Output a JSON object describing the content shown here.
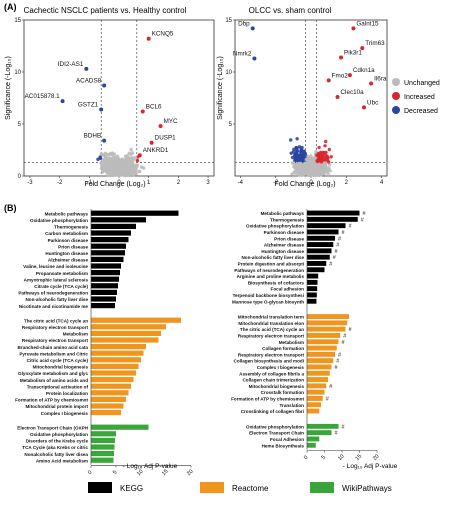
{
  "figure": {
    "panel_a_letter": "(A)",
    "panel_b_letter": "(B)",
    "panel_a_left_title": "Cachectic NSCLC patients vs. Healthy control",
    "panel_a_right_title": "OLCC vs. sham control",
    "legend_a": {
      "items": [
        {
          "label": "Unchanged",
          "color": "#bbbbbb"
        },
        {
          "label": "Increased",
          "color": "#d9262c"
        },
        {
          "label": "Decreased",
          "color": "#2a45a0"
        }
      ]
    },
    "legend_b": {
      "items": [
        {
          "label": "KEGG",
          "color": "#000000"
        },
        {
          "label": "Reactome",
          "color": "#f0961e"
        },
        {
          "label": "WikiPathways",
          "color": "#3aa63a"
        }
      ]
    },
    "colors": {
      "kegg": "#000000",
      "reactome": "#f0961e",
      "wiki": "#3aa63a",
      "increased": "#d9262c",
      "decreased": "#2a45a0",
      "unchanged": "#bbbbbb"
    }
  },
  "chart_data": [
    {
      "type": "scatter",
      "title": "Cachectic NSCLC patients vs. Healthy control",
      "xlabel": "Fold Change (Log₂)",
      "ylabel": "Significance (-Log₁₀)",
      "xlim": [
        -3.2,
        3.2
      ],
      "ylim": [
        0,
        15
      ],
      "xticks": [
        -3,
        -2,
        -1,
        0,
        1,
        2,
        3
      ],
      "yticks": [
        0,
        5,
        10,
        15
      ],
      "thresholds": {
        "fc": [
          -0.6,
          0.6
        ],
        "sig": 1.3
      },
      "labeled_genes": [
        {
          "label": "KCNQ5",
          "x": 1.0,
          "y": 13.2
        },
        {
          "label": "IDI2-AS1",
          "x": -1.1,
          "y": 10.3
        },
        {
          "label": "ACADS8",
          "x": -0.5,
          "y": 8.7
        },
        {
          "label": "AC015878.1",
          "x": -1.9,
          "y": 7.2
        },
        {
          "label": "GSTZ1",
          "x": -0.6,
          "y": 6.4
        },
        {
          "label": "BCL6",
          "x": 0.8,
          "y": 6.2
        },
        {
          "label": "MYC",
          "x": 1.4,
          "y": 4.8
        },
        {
          "label": "BDHB",
          "x": -0.5,
          "y": 3.4
        },
        {
          "label": "DUSP1",
          "x": 1.1,
          "y": 3.2
        },
        {
          "label": "ANKRD1",
          "x": 0.7,
          "y": 2.0
        }
      ]
    },
    {
      "type": "scatter",
      "title": "OLCC vs. sham control",
      "xlabel": "Fold Change (Log₂)",
      "ylabel": "Significance (-Log₁₀)",
      "xlim": [
        -4.3,
        4.3
      ],
      "ylim": [
        0,
        15
      ],
      "xticks": [
        -4,
        -2,
        0,
        2,
        4
      ],
      "yticks": [
        5,
        10,
        15
      ],
      "thresholds": {
        "fc": [
          -0.3,
          0.3
        ],
        "sig": 1.3
      },
      "labeled_genes": [
        {
          "label": "Dbp",
          "x": -3.3,
          "y": 14.2
        },
        {
          "label": "Galnt15",
          "x": 2.4,
          "y": 14.2
        },
        {
          "label": "Nmrk2",
          "x": -3.2,
          "y": 11.3
        },
        {
          "label": "Trim63",
          "x": 2.9,
          "y": 12.3
        },
        {
          "label": "Pik3r1",
          "x": 1.7,
          "y": 11.4
        },
        {
          "label": "Cdkn1a",
          "x": 2.2,
          "y": 9.7
        },
        {
          "label": "Fmo2",
          "x": 1.0,
          "y": 9.2
        },
        {
          "label": "Il6ra",
          "x": 3.4,
          "y": 8.9
        },
        {
          "label": "Clec10a",
          "x": 1.5,
          "y": 7.6
        },
        {
          "label": "Ubc",
          "x": 3.0,
          "y": 6.6
        }
      ]
    },
    {
      "type": "bar",
      "orientation": "horizontal",
      "xlabel": "- Log₁₀ Adj P-value",
      "xlim": [
        0,
        20
      ],
      "xticks": [
        0,
        5,
        10,
        15,
        20
      ],
      "groups": [
        {
          "source": "KEGG",
          "categories": [
            "Metabolic pathways",
            "Oxidative phosphorylation",
            "Thermogenesis",
            "Carbon metabolism",
            "Parkinson disease",
            "Prion disease",
            "Huntington disease",
            "Alzheimer disease",
            "Valine, leucine and isoleucine",
            "Propanoate metabolism",
            "Amyotrophic lateral sclerosis",
            "Citrate cycle (TCA cycle)",
            "Pathways of neurodegeneration",
            "Non-alcoholic fatty liver dise",
            "Nicotinate and nicotinamide me"
          ],
          "values": [
            17.5,
            11.0,
            9.0,
            8.0,
            7.5,
            7.0,
            6.8,
            6.5,
            6.0,
            5.8,
            5.6,
            5.4,
            5.2,
            5.0,
            4.8
          ]
        },
        {
          "source": "Reactome",
          "categories": [
            "The citric acid (TCA) cycle an",
            "Respiratory electron transport",
            "Metabolism",
            "Respiratory electron transport",
            "Branched-chain amino acid cata",
            "Pyruvate metabolism and Citric",
            "Citric acid cycle (TCA cycle)",
            "Mitochondrial biogenesis",
            "Glyoxylate metabolism and glyc",
            "Metabolism of amino acids and",
            "Transcriptional activation of",
            "Protein localization",
            "Formation of ATP by chemiosmot",
            "Mitochondrial protein import",
            "Complex I biogenesis"
          ],
          "values": [
            18.0,
            15.0,
            14.0,
            13.5,
            11.0,
            10.5,
            10.0,
            9.5,
            9.0,
            8.5,
            8.0,
            7.5,
            7.0,
            6.5,
            6.0
          ]
        },
        {
          "source": "WikiPathways",
          "categories": [
            "Electron Transport Chain (OXPH",
            "Oxidative phosphorylation",
            "Disorders of the Krebs cycle",
            "TCA Cycle (aka Krebs or citric",
            "Nonalcoholic fatty liver disea",
            "Amino Acid metabolism"
          ],
          "values": [
            11.5,
            5.0,
            4.8,
            4.7,
            4.6,
            4.5
          ]
        }
      ]
    },
    {
      "type": "bar",
      "orientation": "horizontal",
      "xlabel": "- Log₁₀ Adj P-value",
      "xlim": [
        0,
        20
      ],
      "xticks": [
        0,
        5,
        10,
        15,
        20
      ],
      "significance_mark": "#",
      "groups": [
        {
          "source": "KEGG",
          "categories": [
            "Metabolic pathways",
            "Thermogenesis",
            "Oxidative phosphorylation",
            "Parkinson disease",
            "Prion disease",
            "Alzheimer disease",
            "Huntington disease",
            "Non-alcoholic fatty liver dise",
            "Protein digestion and absorpti",
            "Pathways of neurodegeneration",
            "Arginine and proline metabolis",
            "Biosynthesis of cofactors",
            "Focal adhesion",
            "Terpenoid backbone biosynthesi",
            "Mannose type O-glycan biosynth"
          ],
          "values": [
            15.0,
            14.5,
            11.0,
            9.0,
            8.0,
            7.5,
            7.0,
            6.5,
            5.5,
            5.0,
            3.2,
            3.0,
            2.9,
            2.8,
            2.7
          ],
          "marked": [
            true,
            true,
            true,
            true,
            true,
            true,
            true,
            true,
            true,
            false,
            false,
            false,
            false,
            false,
            false
          ]
        },
        {
          "source": "Reactome",
          "categories": [
            "Mitochondrial translation term",
            "Mitochondrial translation elon",
            "The citric acid (TCA) cycle an",
            "Respiratory electron transport",
            "Metabolism",
            "Collagen formation",
            "Respiratory electron transport",
            "Collagen biosynthesis and modi",
            "Complex I biogenesis",
            "Assembly of collagen fibrils a",
            "Collagen chain trimerization",
            "Mitochondrial biogenesis",
            "Crosstalk formation",
            "Formation of ATP by chemiosmot",
            "Translation",
            "Crosslinking of collagen fibri"
          ],
          "values": [
            12.0,
            11.5,
            11.0,
            9.5,
            9.0,
            8.5,
            8.0,
            7.5,
            7.0,
            6.5,
            6.0,
            5.5,
            5.0,
            4.5,
            4.0,
            3.5
          ],
          "marked": [
            false,
            false,
            true,
            true,
            true,
            false,
            true,
            true,
            true,
            false,
            false,
            true,
            false,
            true,
            false,
            false
          ]
        },
        {
          "source": "WikiPathways",
          "categories": [
            "Oxidative phosphorylation",
            "Electron Transport Chain",
            "Focal Adhesion",
            "Heme Biosynthesis"
          ],
          "values": [
            9.0,
            7.0,
            3.5,
            2.5
          ],
          "marked": [
            true,
            true,
            false,
            false
          ]
        }
      ]
    }
  ]
}
